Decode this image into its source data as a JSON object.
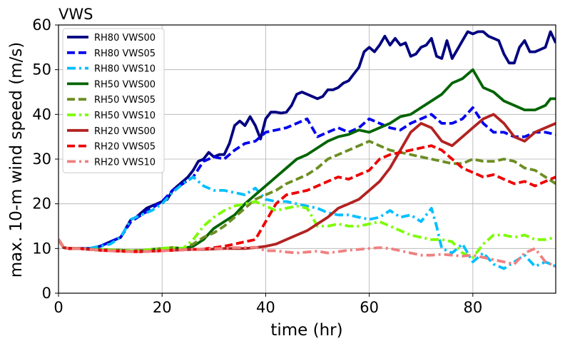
{
  "chart_data": {
    "type": "line",
    "title": "VWS",
    "xlabel": "time (hr)",
    "ylabel": "max. 10-m wind speed (m/s)",
    "xlim": [
      0,
      96
    ],
    "ylim": [
      0,
      60
    ],
    "xticks": [
      0,
      20,
      40,
      60,
      80
    ],
    "yticks": [
      0,
      10,
      20,
      30,
      40,
      50,
      60
    ],
    "grid": true,
    "legend_position": "top-left",
    "series": [
      {
        "name": "RH80 VWS00",
        "color": "#000080",
        "dash": "solid",
        "x": [
          0,
          1,
          2,
          4,
          6,
          8,
          10,
          11,
          12,
          13,
          14,
          15,
          16,
          17,
          18,
          19,
          20,
          21,
          22,
          23,
          24,
          25,
          26,
          27,
          28,
          29,
          30,
          31,
          32,
          33,
          34,
          35,
          36,
          37,
          38,
          39,
          40,
          41,
          42,
          43,
          44,
          45,
          46,
          47,
          48,
          49,
          50,
          51,
          52,
          53,
          54,
          55,
          56,
          57,
          58,
          59,
          60,
          61,
          62,
          63,
          64,
          65,
          66,
          67,
          68,
          69,
          70,
          71,
          72,
          73,
          74,
          75,
          76,
          77,
          78,
          79,
          80,
          81,
          82,
          83,
          84,
          85,
          86,
          87,
          88,
          89,
          90,
          91,
          92,
          93,
          94,
          95,
          96
        ],
        "y": [
          12,
          10.2,
          10,
          10,
          10,
          10.5,
          11.5,
          12,
          12.5,
          14.5,
          16.5,
          17,
          18,
          19,
          19.5,
          20,
          20.5,
          21,
          23,
          24,
          25,
          26,
          27.5,
          29.5,
          30,
          31.5,
          30.5,
          31,
          31,
          33.5,
          37.5,
          38.5,
          37.5,
          39.5,
          37.5,
          34.5,
          39,
          40.5,
          40.5,
          40.3,
          40.5,
          42,
          44.5,
          45,
          44.5,
          44,
          43.5,
          44,
          45.5,
          45.5,
          46,
          47,
          47.5,
          49,
          50.5,
          54,
          55,
          54,
          55.5,
          57.5,
          55.5,
          57,
          55.5,
          56,
          53,
          53.5,
          55,
          55.5,
          57,
          53,
          52.5,
          56.5,
          52.5,
          54.5,
          56.5,
          58.5,
          58,
          58.5,
          58.5,
          57.5,
          57,
          56.5,
          53.5,
          51.5,
          51.5,
          55,
          56.5,
          54,
          54,
          54.5,
          55,
          58.5,
          56
        ]
      },
      {
        "name": "RH80 VWS05",
        "color": "#0000ee",
        "dash": "dashed",
        "x": [
          0,
          1,
          2,
          4,
          6,
          8,
          10,
          12,
          14,
          16,
          18,
          20,
          22,
          24,
          26,
          28,
          30,
          32,
          34,
          36,
          38,
          40,
          42,
          44,
          46,
          48,
          50,
          52,
          54,
          56,
          58,
          60,
          62,
          64,
          66,
          68,
          70,
          72,
          74,
          76,
          78,
          80,
          82,
          84,
          86,
          88,
          90,
          92,
          94,
          96
        ],
        "y": [
          12,
          10.2,
          10,
          10,
          10,
          10.5,
          11.5,
          12.5,
          16,
          17.5,
          19,
          20.5,
          23,
          24.5,
          26,
          29.5,
          30.5,
          30,
          32,
          33.5,
          34,
          36,
          36.5,
          37,
          38,
          39,
          35,
          36,
          37,
          36,
          37,
          39,
          38,
          37,
          36.5,
          38,
          39,
          40,
          38,
          38,
          39,
          41.5,
          38,
          36,
          36,
          35,
          35,
          36,
          36,
          35.5
        ]
      },
      {
        "name": "RH80 VWS10",
        "color": "#00bfff",
        "dash": "dashdot",
        "x": [
          0,
          1,
          2,
          4,
          6,
          8,
          10,
          12,
          14,
          16,
          18,
          20,
          22,
          24,
          26,
          28,
          30,
          32,
          34,
          36,
          38,
          40,
          42,
          44,
          46,
          48,
          50,
          52,
          54,
          56,
          58,
          60,
          62,
          64,
          66,
          68,
          70,
          72,
          73,
          74,
          76,
          78,
          80,
          82,
          84,
          86,
          88,
          90,
          92,
          94,
          96
        ],
        "y": [
          12,
          10.2,
          10,
          10,
          10,
          10.5,
          11,
          12.5,
          16.5,
          17.5,
          18.5,
          20,
          22.5,
          24.5,
          26,
          24,
          23,
          23,
          22.5,
          22,
          23.5,
          21,
          20.5,
          20.5,
          20,
          19.5,
          19,
          18,
          17.5,
          17.5,
          17,
          16.5,
          17,
          18.5,
          17,
          17.5,
          16,
          19,
          15,
          10,
          9,
          11,
          7,
          9,
          6.5,
          5.5,
          7,
          8.5,
          6,
          7,
          6
        ]
      },
      {
        "name": "RH50 VWS00",
        "color": "#006400",
        "dash": "solid",
        "x": [
          0,
          1,
          2,
          4,
          6,
          8,
          10,
          12,
          14,
          16,
          18,
          20,
          22,
          24,
          26,
          28,
          30,
          32,
          34,
          36,
          38,
          40,
          42,
          44,
          46,
          48,
          50,
          52,
          54,
          56,
          58,
          60,
          62,
          64,
          66,
          68,
          70,
          72,
          74,
          76,
          78,
          80,
          82,
          84,
          86,
          88,
          90,
          92,
          94,
          95,
          96
        ],
        "y": [
          12,
          10.2,
          10,
          10,
          9.8,
          9.8,
          9.7,
          9.6,
          9.5,
          9.5,
          9.8,
          10,
          10.2,
          10,
          10.5,
          12,
          14.5,
          16,
          17.5,
          20,
          22,
          24,
          26,
          28,
          30,
          31,
          32.5,
          34,
          35,
          35.5,
          36.5,
          36,
          37,
          38,
          39.5,
          40,
          41.5,
          43,
          44.5,
          47,
          48,
          50,
          46,
          45,
          43,
          42,
          41,
          41,
          42,
          43.5,
          43.5
        ]
      },
      {
        "name": "RH50 VWS05",
        "color": "#6b8e23",
        "dash": "dashed",
        "x": [
          0,
          1,
          2,
          4,
          6,
          8,
          10,
          12,
          14,
          16,
          18,
          20,
          22,
          24,
          26,
          28,
          30,
          32,
          34,
          36,
          38,
          40,
          42,
          44,
          46,
          48,
          50,
          52,
          54,
          56,
          58,
          60,
          62,
          64,
          66,
          68,
          70,
          72,
          74,
          76,
          78,
          80,
          82,
          84,
          86,
          88,
          90,
          92,
          94,
          96
        ],
        "y": [
          12,
          10.2,
          10,
          10,
          9.8,
          9.8,
          9.7,
          9.6,
          9.5,
          9.6,
          9.8,
          10,
          10.2,
          10,
          11,
          12.5,
          13.5,
          15,
          17,
          19,
          21,
          22,
          23,
          24.5,
          25.5,
          26.5,
          28,
          30,
          31,
          32,
          33,
          34,
          33,
          32,
          31.5,
          31,
          30.5,
          30,
          29.5,
          29,
          29,
          30,
          29.5,
          29.5,
          30,
          29.5,
          28,
          27.5,
          26,
          24.5
        ]
      },
      {
        "name": "RH50 VWS10",
        "color": "#7cfc00",
        "dash": "dashdot",
        "x": [
          0,
          1,
          2,
          4,
          6,
          8,
          10,
          12,
          14,
          16,
          18,
          20,
          22,
          24,
          26,
          28,
          30,
          32,
          34,
          36,
          38,
          40,
          42,
          44,
          46,
          48,
          50,
          52,
          54,
          56,
          58,
          60,
          62,
          64,
          66,
          68,
          70,
          72,
          74,
          76,
          78,
          80,
          82,
          84,
          86,
          88,
          90,
          92,
          94,
          96
        ],
        "y": [
          12,
          10.2,
          10,
          10,
          9.8,
          9.8,
          9.7,
          9.6,
          9.5,
          9.6,
          9.8,
          10,
          10.2,
          10,
          12,
          15,
          17,
          18.5,
          19.5,
          20,
          20.5,
          19.5,
          18.5,
          19,
          19.5,
          19,
          15,
          15,
          15.5,
          15,
          15,
          15.5,
          16,
          15,
          14,
          13,
          12.5,
          12,
          12,
          11.5,
          9,
          8,
          11,
          13,
          13,
          12.5,
          13,
          12,
          12,
          12.5
        ]
      },
      {
        "name": "RH20 VWS00",
        "color": "#b22222",
        "dash": "solid",
        "x": [
          0,
          1,
          2,
          4,
          6,
          8,
          10,
          12,
          14,
          16,
          18,
          20,
          22,
          24,
          26,
          28,
          30,
          32,
          34,
          36,
          38,
          40,
          42,
          44,
          46,
          48,
          50,
          52,
          54,
          56,
          58,
          60,
          62,
          64,
          66,
          68,
          70,
          72,
          74,
          76,
          78,
          80,
          82,
          84,
          86,
          88,
          90,
          92,
          94,
          96
        ],
        "y": [
          12,
          10.2,
          10,
          10,
          9.8,
          9.6,
          9.5,
          9.4,
          9.3,
          9.3,
          9.4,
          9.5,
          9.6,
          9.7,
          9.8,
          9.8,
          9.9,
          10,
          10,
          10,
          10.2,
          10.5,
          11,
          12,
          13,
          14,
          15.5,
          17,
          19,
          20,
          21,
          23,
          25,
          28,
          32,
          36,
          38,
          37,
          34,
          33,
          35,
          37,
          39,
          40,
          38,
          35,
          34,
          36,
          37,
          38
        ]
      },
      {
        "name": "RH20 VWS05",
        "color": "#ee0000",
        "dash": "dashed",
        "x": [
          0,
          1,
          2,
          4,
          6,
          8,
          10,
          12,
          14,
          16,
          18,
          20,
          22,
          24,
          26,
          28,
          30,
          32,
          34,
          36,
          38,
          40,
          42,
          44,
          46,
          48,
          50,
          52,
          54,
          56,
          58,
          60,
          62,
          64,
          66,
          68,
          70,
          72,
          74,
          76,
          78,
          80,
          82,
          84,
          86,
          88,
          90,
          92,
          94,
          96
        ],
        "y": [
          12,
          10.2,
          10,
          10,
          9.8,
          9.6,
          9.5,
          9.4,
          9.3,
          9.3,
          9.4,
          9.5,
          9.6,
          9.7,
          9.8,
          9.9,
          10.2,
          10.5,
          11,
          11.5,
          12,
          16,
          20,
          22,
          22.5,
          23,
          24,
          25,
          26,
          25.5,
          26.5,
          27.5,
          30,
          31,
          31.5,
          32,
          32.5,
          33,
          32,
          30,
          28,
          27,
          26,
          26.5,
          25.5,
          24.5,
          25,
          24,
          25,
          26
        ]
      },
      {
        "name": "RH20 VWS10",
        "color": "#f08080",
        "dash": "dashdot",
        "x": [
          0,
          1,
          2,
          4,
          6,
          8,
          10,
          12,
          14,
          16,
          18,
          20,
          22,
          24,
          26,
          28,
          30,
          32,
          34,
          36,
          38,
          40,
          42,
          44,
          46,
          48,
          50,
          52,
          54,
          56,
          58,
          60,
          62,
          64,
          66,
          68,
          70,
          72,
          74,
          76,
          78,
          80,
          82,
          84,
          86,
          88,
          90,
          92,
          94,
          96
        ],
        "y": [
          12,
          10.2,
          10,
          10,
          9.8,
          9.6,
          9.5,
          9.4,
          9.3,
          9.3,
          9.4,
          9.5,
          9.6,
          9.7,
          9.8,
          9.9,
          10,
          10,
          10.2,
          10.2,
          10.3,
          9.5,
          9.5,
          9.2,
          9,
          9.2,
          9.4,
          9,
          9.3,
          9.6,
          9.8,
          10,
          10.2,
          10,
          9.5,
          9,
          8.5,
          8.5,
          8.7,
          8.5,
          8.3,
          8.5,
          8,
          7.5,
          7,
          6.5,
          9,
          10,
          7,
          6
        ]
      }
    ]
  }
}
